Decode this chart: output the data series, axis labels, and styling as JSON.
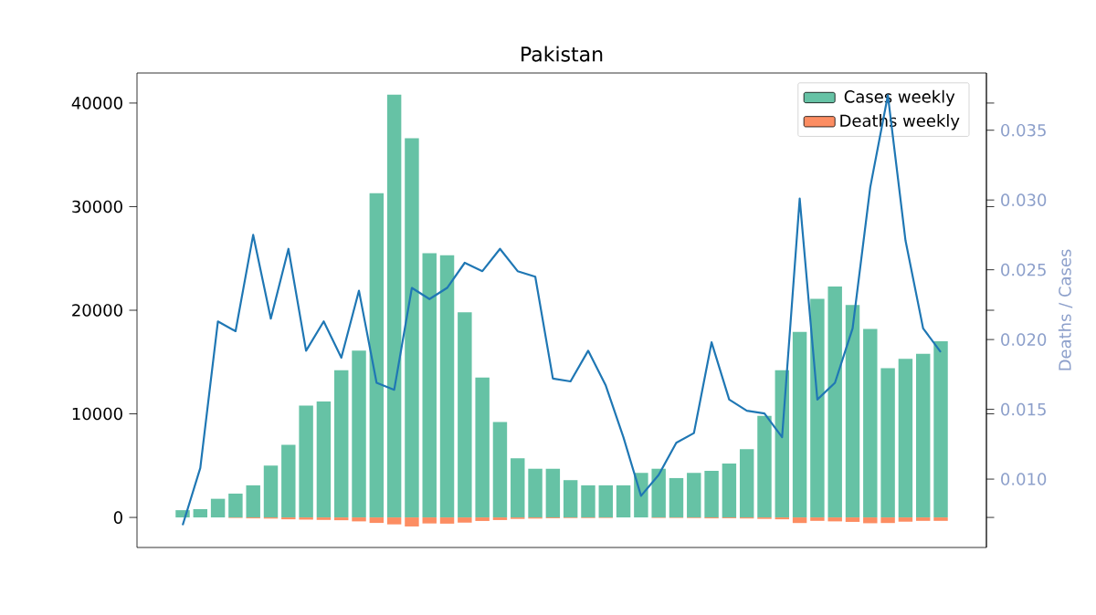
{
  "chart_data": {
    "type": "bar",
    "title": "Pakistan",
    "y2label": "Deaths / Cases",
    "legend": "top right",
    "categories": [
      null,
      null,
      null,
      null,
      null,
      null,
      null,
      null,
      null,
      null,
      null,
      null,
      null,
      null,
      null,
      null,
      null,
      null,
      null,
      null,
      null,
      null,
      null,
      null,
      null,
      null,
      null,
      null,
      null,
      null,
      null,
      null,
      null,
      null,
      null,
      null,
      null,
      null,
      null,
      null,
      null,
      null,
      null,
      null
    ],
    "series": [
      {
        "name": "Cases weekly",
        "color": "#66c2a5",
        "values": [
          700,
          800,
          1800,
          2300,
          3100,
          5000,
          7000,
          10800,
          11200,
          14200,
          16100,
          31300,
          40800,
          36600,
          25500,
          25300,
          19800,
          13500,
          9200,
          5700,
          4700,
          4700,
          3600,
          3100,
          3100,
          3100,
          4300,
          4700,
          3800,
          4300,
          4500,
          5200,
          6600,
          9800,
          14200,
          17900,
          21100,
          22300,
          20500,
          18200,
          14400,
          15300,
          15800,
          17000
        ]
      },
      {
        "name": "Deaths weekly",
        "color": "#fc8d62",
        "values": [
          null,
          null,
          null,
          -50,
          -90,
          -110,
          -180,
          -210,
          -240,
          -270,
          -380,
          -530,
          -670,
          -870,
          -580,
          -600,
          -500,
          -340,
          -250,
          -140,
          -110,
          -80,
          -60,
          -60,
          -50,
          null,
          null,
          -50,
          -50,
          -60,
          -90,
          -80,
          -100,
          -140,
          -180,
          -540,
          -330,
          -380,
          -430,
          -560,
          -540,
          -410,
          -330,
          -330
        ]
      },
      {
        "type": "line",
        "axis": "y2",
        "color": "#1f77b4",
        "values": [
          0.0067,
          0.0108,
          0.0213,
          0.0206,
          0.0275,
          0.0215,
          0.0265,
          0.0192,
          0.0213,
          0.0187,
          0.0235,
          0.0169,
          0.0164,
          0.0237,
          0.0229,
          0.0237,
          0.0255,
          0.0249,
          0.0265,
          0.0249,
          0.0245,
          0.0172,
          0.017,
          0.0192,
          0.0167,
          0.013,
          0.0088,
          0.0103,
          0.0126,
          0.0133,
          0.0198,
          0.0157,
          0.0149,
          0.0147,
          0.013,
          0.0301,
          0.0157,
          0.0169,
          0.0208,
          0.0309,
          0.0375,
          0.0271,
          0.0208,
          0.0191
        ]
      }
    ],
    "ylim": [
      -2900,
      42900
    ],
    "yticks": [
      0,
      10000,
      20000,
      30000,
      40000
    ],
    "y2lim": [
      0.0051,
      0.0391
    ],
    "y2ticks": [
      {
        "value": 0.01,
        "label": "0.010"
      },
      {
        "value": 0.015,
        "label": "0.015"
      },
      {
        "value": 0.02,
        "label": "0.020"
      },
      {
        "value": 0.025,
        "label": "0.025"
      },
      {
        "value": 0.03,
        "label": "0.030"
      },
      {
        "value": 0.035,
        "label": "0.035"
      }
    ]
  }
}
